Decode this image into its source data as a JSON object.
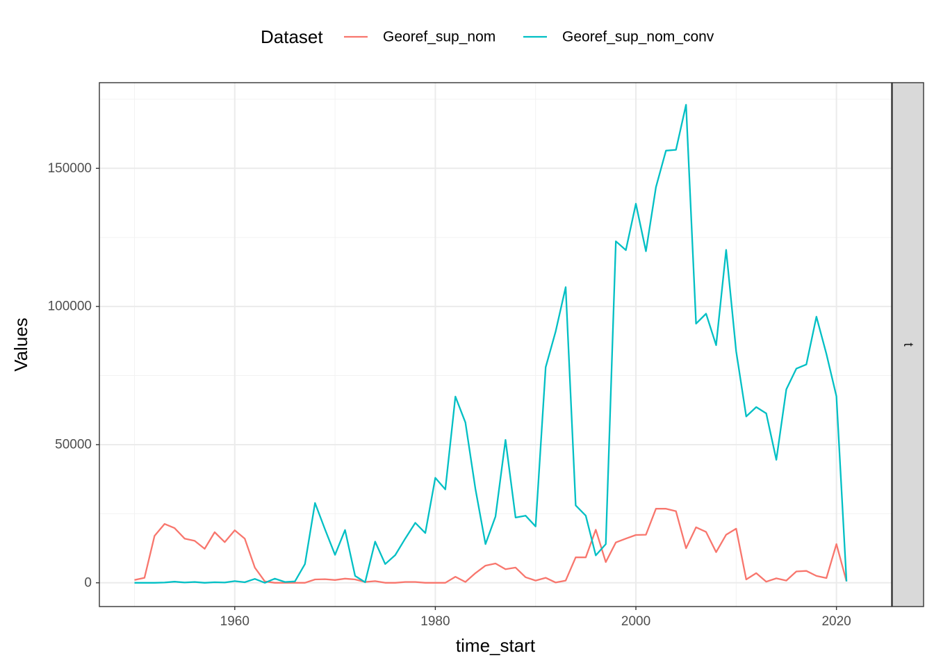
{
  "chart_data": {
    "type": "line",
    "xlabel": "time_start",
    "ylabel": "Values",
    "facet_label": "t",
    "legend": {
      "title": "Dataset",
      "position": "top"
    },
    "xlim": [
      1946.5,
      2025.5
    ],
    "ylim": [
      -8600,
      181000
    ],
    "x_ticks": [
      1960,
      1980,
      2000,
      2020
    ],
    "y_ticks": [
      0,
      50000,
      100000,
      150000
    ],
    "grid": true,
    "x": [
      1950,
      1951,
      1952,
      1953,
      1954,
      1955,
      1956,
      1957,
      1958,
      1959,
      1960,
      1961,
      1962,
      1963,
      1964,
      1965,
      1966,
      1967,
      1968,
      1969,
      1970,
      1971,
      1972,
      1973,
      1974,
      1975,
      1976,
      1977,
      1978,
      1979,
      1980,
      1981,
      1982,
      1983,
      1984,
      1985,
      1986,
      1987,
      1988,
      1989,
      1990,
      1991,
      1992,
      1993,
      1994,
      1995,
      1996,
      1997,
      1998,
      1999,
      2000,
      2001,
      2002,
      2003,
      2004,
      2005,
      2006,
      2007,
      2008,
      2009,
      2010,
      2011,
      2012,
      2013,
      2014,
      2015,
      2016,
      2017,
      2018,
      2019,
      2020,
      2021
    ],
    "series": [
      {
        "name": "Georef_sup_nom",
        "color": "#F8766D",
        "values": [
          1000,
          1800,
          17000,
          21300,
          19800,
          16000,
          15200,
          12300,
          18300,
          14700,
          19000,
          16000,
          5500,
          500,
          0,
          0,
          0,
          0,
          1200,
          1300,
          1000,
          1500,
          1200,
          300,
          600,
          0,
          0,
          300,
          300,
          0,
          0,
          0,
          2200,
          300,
          3500,
          6200,
          7000,
          4900,
          5500,
          2000,
          800,
          1800,
          100,
          800,
          9200,
          9200,
          19200,
          7500,
          14600,
          16000,
          17300,
          17400,
          26800,
          26800,
          25900,
          12500,
          20100,
          18400,
          11100,
          17400,
          19600,
          1200,
          3500,
          400,
          1600,
          800,
          4100,
          4300,
          2500,
          1700,
          14000,
          500
        ]
      },
      {
        "name": "Georef_sup_nom_conv",
        "color": "#00BFC4",
        "values": [
          0,
          0,
          0,
          100,
          400,
          100,
          300,
          0,
          200,
          100,
          600,
          200,
          1400,
          0,
          1500,
          300,
          500,
          6800,
          28900,
          19300,
          10100,
          19100,
          2500,
          200,
          14900,
          6800,
          10000,
          16000,
          21700,
          18000,
          38000,
          33800,
          67400,
          58000,
          34000,
          14000,
          24000,
          51700,
          23600,
          24300,
          20400,
          78000,
          91000,
          107000,
          28000,
          24300,
          9900,
          14000,
          123600,
          120400,
          137200,
          120000,
          143200,
          156400,
          156700,
          173000,
          93800,
          97400,
          86000,
          120500,
          83800,
          60200,
          63600,
          61300,
          44500,
          70000,
          77500,
          79000,
          96300,
          82800,
          67500,
          500
        ]
      }
    ]
  }
}
